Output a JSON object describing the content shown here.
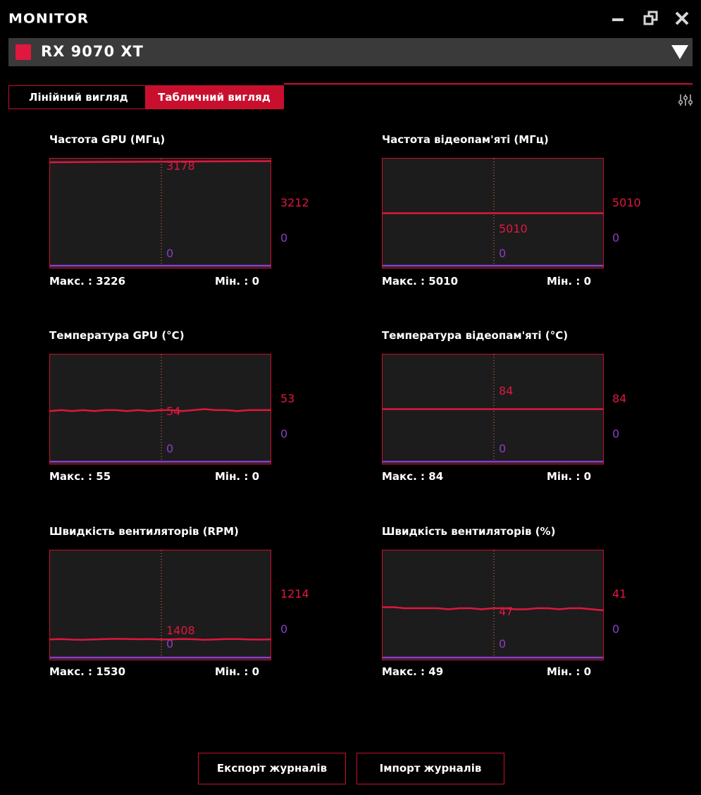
{
  "app": {
    "title": "MONITOR"
  },
  "window": {
    "minimize": "minimize-icon",
    "restore": "restore-icon",
    "close": "close-icon"
  },
  "device": {
    "name": "RX 9070 XT",
    "swatch_color": "#e0173f"
  },
  "tabs": [
    {
      "label": "Лінійний вигляд",
      "active": false
    },
    {
      "label": "Табличний вигляд",
      "active": true
    }
  ],
  "colors": {
    "accent": "#c8102e",
    "series_primary": "#e0173f",
    "series_secondary": "#8a3ec8",
    "plot_bg": "#1c1c1c"
  },
  "charts": [
    {
      "title": "Частота GPU (МГц)",
      "current_red": "3178",
      "current_purple": "0",
      "side_red": "3212",
      "side_purple": "0",
      "max_label": "Макс. : 3226",
      "min_label": "Мін. : 0"
    },
    {
      "title": "Частота відеопам'яті (МГц)",
      "current_red": "5010",
      "current_purple": "0",
      "side_red": "5010",
      "side_purple": "0",
      "max_label": "Макс. : 5010",
      "min_label": "Мін. : 0"
    },
    {
      "title": "Температура GPU (°C)",
      "current_red": "54",
      "current_purple": "0",
      "side_red": "53",
      "side_purple": "0",
      "max_label": "Макс. : 55",
      "min_label": "Мін. : 0"
    },
    {
      "title": "Температура відеопам'яті (°C)",
      "current_red": "84",
      "current_purple": "0",
      "side_red": "84",
      "side_purple": "0",
      "max_label": "Макс. : 84",
      "min_label": "Мін. : 0"
    },
    {
      "title": "Швидкість вентиляторів (RPM)",
      "current_red": "1408",
      "current_purple": "0",
      "side_red": "1214",
      "side_purple": "0",
      "max_label": "Макс. : 1530",
      "min_label": "Мін. : 0"
    },
    {
      "title": "Швидкість вентиляторів (%)",
      "current_red": "47",
      "current_purple": "0",
      "side_red": "41",
      "side_purple": "0",
      "max_label": "Макс. : 49",
      "min_label": "Мін. : 0"
    }
  ],
  "chart_data": [
    {
      "type": "line",
      "title": "Частота GPU (МГц)",
      "ylim": [
        0,
        3226
      ],
      "series": [
        {
          "values": [
            3178,
            3212
          ]
        },
        {
          "values": [
            0,
            0
          ]
        }
      ]
    },
    {
      "type": "line",
      "title": "Частота відеопам'яті (МГц)",
      "ylim": [
        0,
        10020
      ],
      "series": [
        {
          "values": [
            5010,
            5010,
            5010,
            5010,
            5010,
            5010,
            5010,
            5010,
            5010,
            5010,
            5010,
            5010
          ]
        },
        {
          "values": [
            0,
            0,
            0,
            0,
            0,
            0,
            0,
            0,
            0,
            0,
            0,
            0
          ]
        }
      ]
    },
    {
      "type": "line",
      "title": "Температура GPU (°C)",
      "ylim": [
        0,
        110
      ],
      "series": [
        {
          "values": [
            53,
            54,
            53,
            54,
            53,
            54,
            54,
            53,
            54,
            53,
            54,
            54,
            53,
            54,
            55,
            54,
            54,
            53,
            54,
            54,
            54
          ]
        },
        {
          "values": [
            0,
            0,
            0,
            0,
            0,
            0,
            0,
            0,
            0,
            0,
            0,
            0,
            0,
            0,
            0,
            0,
            0,
            0,
            0,
            0,
            0
          ]
        }
      ]
    },
    {
      "type": "line",
      "title": "Температура відеопам'яті (°C)",
      "ylim": [
        0,
        168
      ],
      "series": [
        {
          "values": [
            84,
            84,
            84,
            84,
            84,
            84,
            84,
            84,
            84,
            84,
            84,
            84
          ]
        },
        {
          "values": [
            0,
            0,
            0,
            0,
            0,
            0,
            0,
            0,
            0,
            0,
            0,
            0
          ]
        }
      ]
    },
    {
      "type": "line",
      "title": "Швидкість вентиляторів (RPM)",
      "ylim": [
        0,
        7000
      ],
      "series": [
        {
          "values": [
            1214,
            1230,
            1200,
            1190,
            1214,
            1230,
            1250,
            1240,
            1220,
            1230,
            1208,
            1214,
            1240,
            1220,
            1190,
            1214,
            1230,
            1230,
            1210,
            1200,
            1214
          ]
        },
        {
          "values": [
            0,
            0,
            0,
            0,
            0,
            0,
            0,
            0,
            0,
            0,
            0,
            0,
            0,
            0,
            0,
            0,
            0,
            0,
            0,
            0,
            0
          ]
        }
      ]
    },
    {
      "type": "line",
      "title": "Швидкість вентиляторів (%)",
      "ylim": [
        0,
        100
      ],
      "series": [
        {
          "values": [
            48,
            48,
            47,
            47,
            47,
            47,
            46,
            47,
            47,
            46,
            47,
            47,
            46,
            46,
            47,
            47,
            46,
            47,
            47,
            46,
            45
          ]
        },
        {
          "values": [
            0,
            0,
            0,
            0,
            0,
            0,
            0,
            0,
            0,
            0,
            0,
            0,
            0,
            0,
            0,
            0,
            0,
            0,
            0,
            0,
            0
          ]
        }
      ]
    }
  ],
  "footer": {
    "export_label": "Експорт журналів",
    "import_label": "Імпорт журналів"
  }
}
